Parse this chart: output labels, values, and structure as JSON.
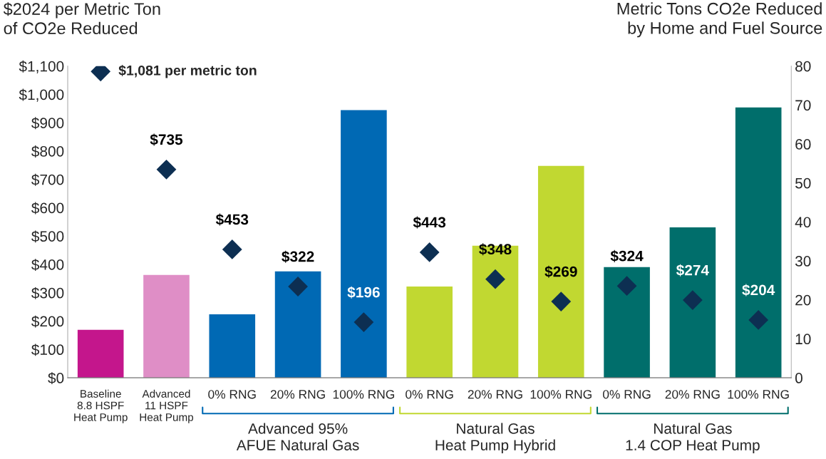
{
  "chart_data": {
    "type": "bar",
    "categories": [
      "Baseline\n8.8 HSPF\nHeat Pump",
      "Advanced\n11 HSPF\nHeat Pump",
      "0% RNG",
      "20% RNG",
      "100% RNG",
      "0% RNG",
      "20% RNG",
      "100% RNG",
      "0% RNG",
      "20% RNG",
      "100% RNG"
    ],
    "series": [
      {
        "axis": "y2",
        "colors": [
          "#c4168c",
          "#df8ec6",
          "#0069b4",
          "#0069b4",
          "#0069b4",
          "#c1d831",
          "#c1d831",
          "#c1d831",
          "#006e6b",
          "#006e6b",
          "#006e6b"
        ],
        "values": [
          12.3,
          26.4,
          16.3,
          27.3,
          68.7,
          23.4,
          33.9,
          54.4,
          28.4,
          38.6,
          69.4
        ]
      },
      {
        "type": "scatter",
        "marker": "diamond",
        "color": "#0d2f52",
        "values": [
          1081,
          735,
          453,
          322,
          196,
          443,
          348,
          269,
          324,
          274,
          204
        ],
        "value_labels": [
          null,
          "$735",
          "$453",
          "$322",
          "$196",
          "$443",
          "$348",
          "$269",
          "$324",
          "$274",
          "$204"
        ]
      }
    ],
    "ylabel": "$2024 per Metric Ton\nof CO2e Reduced",
    "y2label": "Metric Tons CO2e Reduced\nby Home and Fuel Source",
    "ylim": [
      0,
      1100
    ],
    "yticks": [
      {
        "value": 0,
        "label": "$0"
      },
      {
        "value": 100,
        "label": "$100"
      },
      {
        "value": 200,
        "label": "$200"
      },
      {
        "value": 300,
        "label": "$300"
      },
      {
        "value": 400,
        "label": "$400"
      },
      {
        "value": 500,
        "label": "$500"
      },
      {
        "value": 600,
        "label": "$600"
      },
      {
        "value": 700,
        "label": "$700"
      },
      {
        "value": 800,
        "label": "$800"
      },
      {
        "value": 900,
        "label": "$900"
      },
      {
        "value": 1000,
        "label": "$1,000"
      },
      {
        "value": 1100,
        "label": "$1,100"
      }
    ],
    "y2lim": [
      0,
      80
    ],
    "y2ticks": [
      0,
      10,
      20,
      30,
      40,
      50,
      60,
      70,
      80
    ],
    "annotations": [
      {
        "text": "$1,081 per metric ton",
        "x": "Baseline\n8.8 HSPF\nHeat Pump",
        "y": 1081
      },
      "Advanced 95%\nAFUE Natural Gas",
      "Natural Gas\nHeat Pump Hybrid",
      "Natural Gas\n1.4 COP Heat Pump"
    ],
    "grid": false,
    "legend": false
  }
}
